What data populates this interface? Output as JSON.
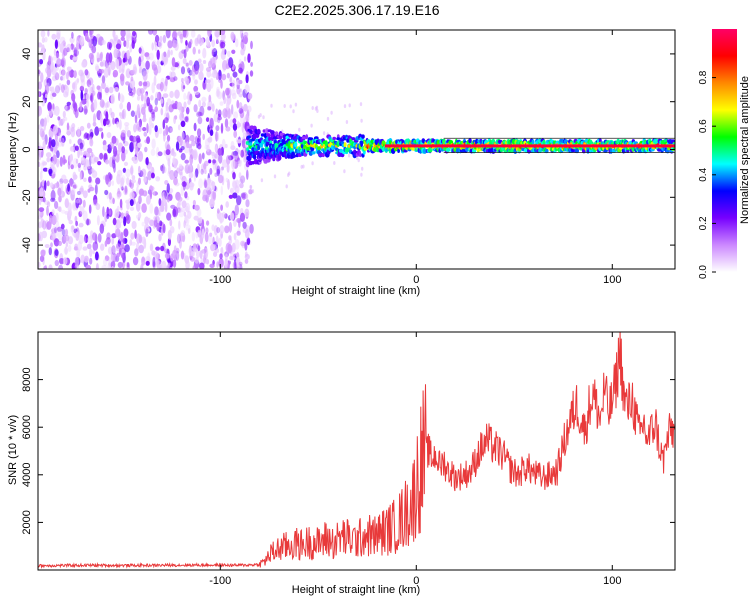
{
  "title": "C2E2.2025.306.17.19.E16",
  "chart_data": [
    {
      "type": "heatmap",
      "xlabel": "Height of straight line (km)",
      "ylabel": "Frequency (Hz)",
      "xlim": [
        -193,
        132
      ],
      "ylim": [
        -50,
        50
      ],
      "xticks": [
        -100,
        0,
        100
      ],
      "xticklabels": [
        "-100",
        "0",
        "100"
      ],
      "yticks": [
        -40,
        -20,
        0,
        20,
        40
      ],
      "yticklabels": [
        "-40",
        "-20",
        "0",
        "20",
        "40"
      ],
      "noise_region_x": [
        -193,
        -86
      ],
      "carrier_frequency_hz": 1.5,
      "carrier_start_x": -86,
      "colorbar": {
        "label": "Normalized spectral amplitude",
        "range": [
          0,
          1
        ],
        "ticks": [
          0,
          0.2,
          0.4,
          0.6,
          0.8
        ],
        "ticklabels": [
          "0.0",
          "0.2",
          "0.4",
          "0.6",
          "0.8"
        ],
        "colors": [
          "#ffffff",
          "#cc88ff",
          "#7700ff",
          "#0000ff",
          "#00ffff",
          "#00ff00",
          "#ffff00",
          "#ff8800",
          "#ff0000",
          "#ff0066"
        ]
      }
    },
    {
      "type": "line",
      "xlabel": "Height of straight line (km)",
      "ylabel": "SNR (10 * v/v)",
      "xlim": [
        -193,
        132
      ],
      "ylim": [
        0,
        10000
      ],
      "xticks": [
        -100,
        0,
        100
      ],
      "xticklabels": [
        "-100",
        "0",
        "100"
      ],
      "yticks": [
        2000,
        4000,
        6000,
        8000
      ],
      "yticklabels": [
        "2000",
        "4000",
        "6000",
        "8000"
      ],
      "color": "#e8393a",
      "series": [
        {
          "name": "SNR",
          "x": [
            -193,
            -170,
            -150,
            -130,
            -110,
            -90,
            -80,
            -77,
            -74,
            -70,
            -66,
            -62,
            -58,
            -54,
            -50,
            -46,
            -42,
            -38,
            -34,
            -30,
            -26,
            -22,
            -18,
            -14,
            -10,
            -6,
            -2,
            0,
            2,
            4,
            6,
            8,
            10,
            12,
            14,
            16,
            18,
            20,
            24,
            28,
            32,
            36,
            40,
            44,
            48,
            52,
            56,
            60,
            64,
            68,
            72,
            75,
            78,
            80,
            82,
            84,
            86,
            88,
            90,
            92,
            94,
            96,
            98,
            100,
            102,
            104,
            106,
            108,
            110,
            112,
            114,
            116,
            118,
            120,
            122,
            124,
            126,
            128,
            130,
            132
          ],
          "values": [
            180,
            200,
            190,
            200,
            210,
            200,
            230,
            400,
            700,
            900,
            1000,
            1100,
            1050,
            1200,
            1100,
            1300,
            1150,
            1400,
            1300,
            1250,
            1500,
            1400,
            1550,
            1700,
            1900,
            2300,
            2800,
            3600,
            4300,
            4800,
            5200,
            4800,
            5000,
            4500,
            4700,
            4300,
            4200,
            4000,
            4100,
            4300,
            5100,
            5600,
            5300,
            5000,
            4400,
            4100,
            4500,
            4200,
            4000,
            4100,
            4300,
            5400,
            6300,
            6800,
            7200,
            6600,
            6000,
            7000,
            7600,
            7100,
            6500,
            7900,
            6800,
            7300,
            8200,
            9600,
            7400,
            7000,
            7500,
            6600,
            5800,
            6400,
            5600,
            6000,
            6400,
            5400,
            4700,
            5600,
            6100,
            5900
          ]
        }
      ]
    }
  ]
}
